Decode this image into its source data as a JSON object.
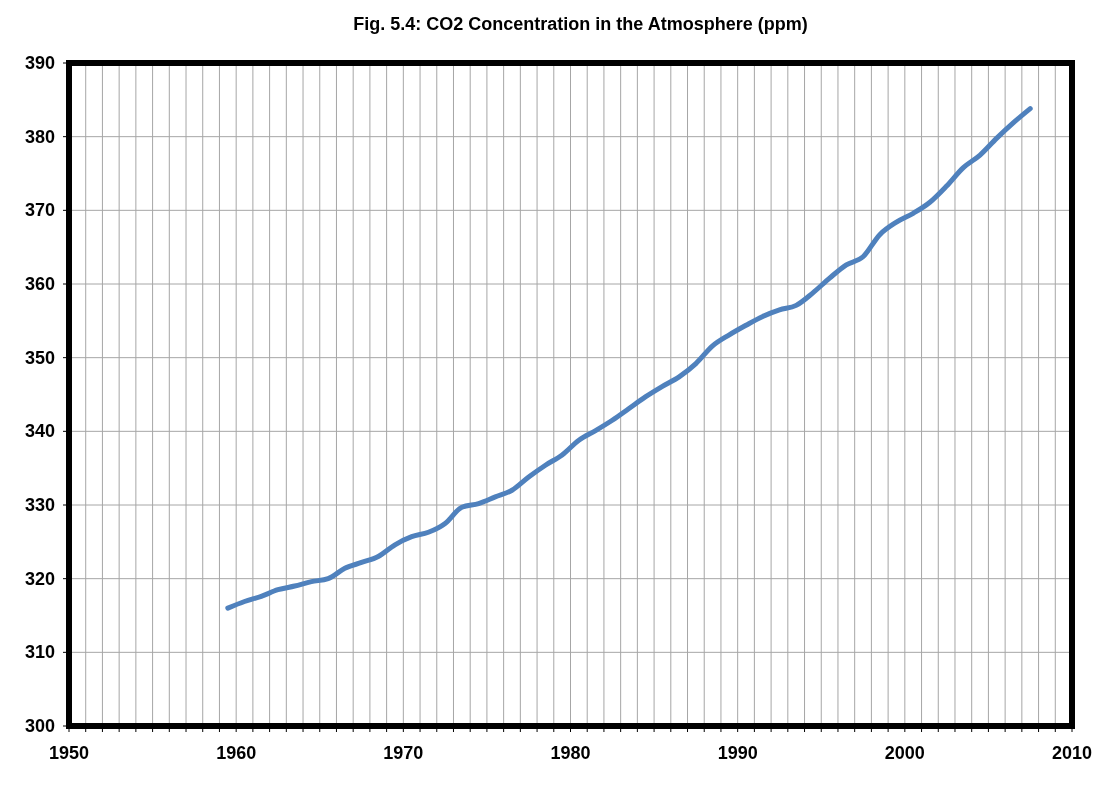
{
  "chart_data": {
    "type": "line",
    "title": "Fig. 5.4: CO2 Concentration in the Atmosphere (ppm)",
    "x": [
      1959.5,
      1960.5,
      1961.5,
      1962.5,
      1963.5,
      1964.5,
      1965.5,
      1966.5,
      1967.5,
      1968.5,
      1969.5,
      1970.5,
      1971.5,
      1972.5,
      1973.5,
      1974.5,
      1975.5,
      1976.5,
      1977.5,
      1978.5,
      1979.5,
      1980.5,
      1981.5,
      1982.5,
      1983.5,
      1984.5,
      1985.5,
      1986.5,
      1987.5,
      1988.5,
      1989.5,
      1990.5,
      1991.5,
      1992.5,
      1993.5,
      1994.5,
      1995.5,
      1996.5,
      1997.5,
      1998.5,
      1999.5,
      2000.5,
      2001.5,
      2002.5,
      2003.5,
      2004.5,
      2005.5,
      2006.5,
      2007.5
    ],
    "series": [
      {
        "color": "#4f81bd",
        "values": [
          316.0,
          316.9,
          317.6,
          318.5,
          319.0,
          319.6,
          320.0,
          321.4,
          322.2,
          323.0,
          324.6,
          325.7,
          326.3,
          327.5,
          329.7,
          330.2,
          331.1,
          332.0,
          333.8,
          335.4,
          336.8,
          338.8,
          340.1,
          341.5,
          343.1,
          344.7,
          346.1,
          347.4,
          349.2,
          351.6,
          353.1,
          354.4,
          355.6,
          356.5,
          357.1,
          358.8,
          360.8,
          362.6,
          363.7,
          366.7,
          368.4,
          369.6,
          371.1,
          373.3,
          375.8,
          377.5,
          379.8,
          381.9,
          383.8
        ]
      }
    ],
    "xlim": [
      1950,
      2010
    ],
    "xticks": [
      1950,
      {
        "value": 1951,
        "label": null
      },
      {
        "value": 1952,
        "label": null
      },
      {
        "value": 1953,
        "label": null
      },
      {
        "value": 1954,
        "label": null
      },
      {
        "value": 1955,
        "label": null
      },
      {
        "value": 1956,
        "label": null
      },
      {
        "value": 1957,
        "label": null
      },
      {
        "value": 1958,
        "label": null
      },
      {
        "value": 1959,
        "label": null
      },
      1960,
      {
        "value": 1961,
        "label": null
      },
      {
        "value": 1962,
        "label": null
      },
      {
        "value": 1963,
        "label": null
      },
      {
        "value": 1964,
        "label": null
      },
      {
        "value": 1965,
        "label": null
      },
      {
        "value": 1966,
        "label": null
      },
      {
        "value": 1967,
        "label": null
      },
      {
        "value": 1968,
        "label": null
      },
      {
        "value": 1969,
        "label": null
      },
      1970,
      {
        "value": 1971,
        "label": null
      },
      {
        "value": 1972,
        "label": null
      },
      {
        "value": 1973,
        "label": null
      },
      {
        "value": 1974,
        "label": null
      },
      {
        "value": 1975,
        "label": null
      },
      {
        "value": 1976,
        "label": null
      },
      {
        "value": 1977,
        "label": null
      },
      {
        "value": 1978,
        "label": null
      },
      {
        "value": 1979,
        "label": null
      },
      1980,
      {
        "value": 1981,
        "label": null
      },
      {
        "value": 1982,
        "label": null
      },
      {
        "value": 1983,
        "label": null
      },
      {
        "value": 1984,
        "label": null
      },
      {
        "value": 1985,
        "label": null
      },
      {
        "value": 1986,
        "label": null
      },
      {
        "value": 1987,
        "label": null
      },
      {
        "value": 1988,
        "label": null
      },
      {
        "value": 1989,
        "label": null
      },
      1990,
      {
        "value": 1991,
        "label": null
      },
      {
        "value": 1992,
        "label": null
      },
      {
        "value": 1993,
        "label": null
      },
      {
        "value": 1994,
        "label": null
      },
      {
        "value": 1995,
        "label": null
      },
      {
        "value": 1996,
        "label": null
      },
      {
        "value": 1997,
        "label": null
      },
      {
        "value": 1998,
        "label": null
      },
      {
        "value": 1999,
        "label": null
      },
      2000,
      {
        "value": 2001,
        "label": null
      },
      {
        "value": 2002,
        "label": null
      },
      {
        "value": 2003,
        "label": null
      },
      {
        "value": 2004,
        "label": null
      },
      {
        "value": 2005,
        "label": null
      },
      {
        "value": 2006,
        "label": null
      },
      {
        "value": 2007,
        "label": null
      },
      {
        "value": 2008,
        "label": null
      },
      {
        "value": 2009,
        "label": null
      },
      2010
    ],
    "ylim": [
      300,
      390
    ],
    "yticks": [
      300,
      310,
      320,
      330,
      340,
      350,
      360,
      370,
      380,
      390
    ],
    "grid": true,
    "marker": "none",
    "line_style": "solid"
  }
}
